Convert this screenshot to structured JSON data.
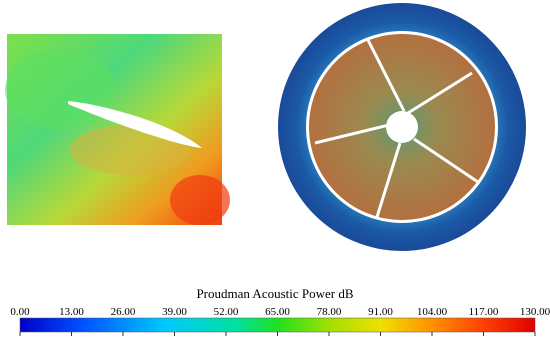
{
  "colorbar": {
    "title": "Proudman Acoustic Power dB",
    "ticks": [
      "0.00",
      "13.00",
      "26.00",
      "39.00",
      "52.00",
      "65.00",
      "78.00",
      "91.00",
      "104.00",
      "117.00",
      "130.00"
    ]
  }
}
